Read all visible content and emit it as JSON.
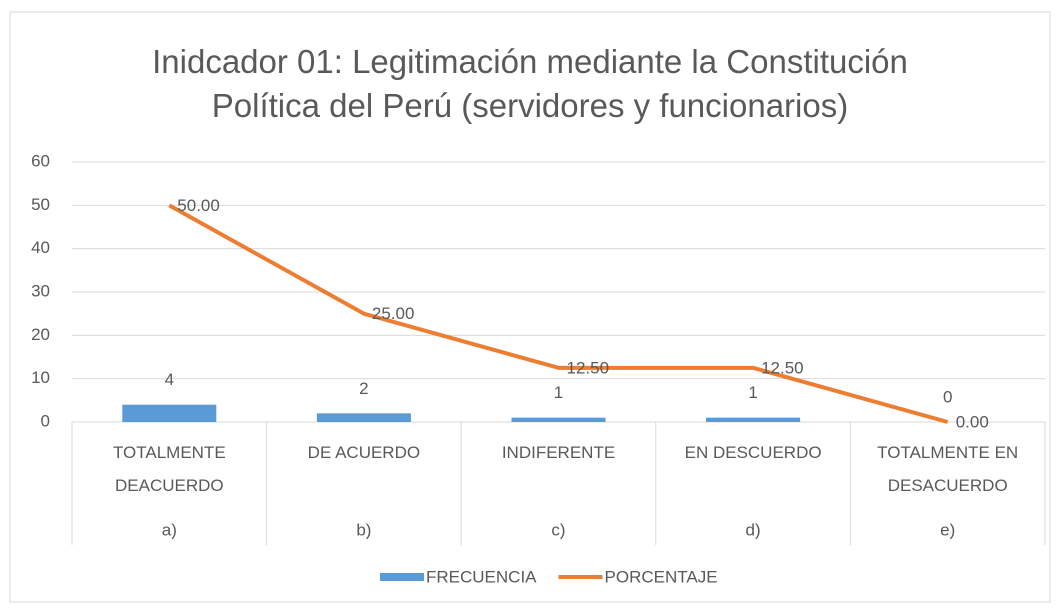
{
  "chart_data": {
    "type": "bar",
    "title": "Inidcador 01: Legitimación mediante la Constitución Política del Perú (servidores y funcionarios)",
    "categories": [
      "TOTALMENTE DEACUERDO",
      "DE ACUERDO",
      "INDIFERENTE",
      "EN DESCUERDO",
      "TOTALMENTE EN DESACUERDO"
    ],
    "groups": [
      "a)",
      "b)",
      "c)",
      "d)",
      "e)"
    ],
    "series": [
      {
        "name": "FRECUENCIA",
        "type": "bar",
        "color": "#5b9bd5",
        "values": [
          4,
          2,
          1,
          1,
          0
        ]
      },
      {
        "name": "PORCENTAJE",
        "type": "line",
        "color": "#ed7d31",
        "values": [
          50,
          25,
          12.5,
          12.5,
          0
        ],
        "value_labels": [
          "50.00",
          "25.00",
          "12.50",
          "12.50",
          "0.00"
        ]
      }
    ],
    "ylim": [
      0,
      60
    ],
    "yticks": [
      0,
      10,
      20,
      30,
      40,
      50,
      60
    ],
    "grid": true,
    "legend": "bottom"
  }
}
